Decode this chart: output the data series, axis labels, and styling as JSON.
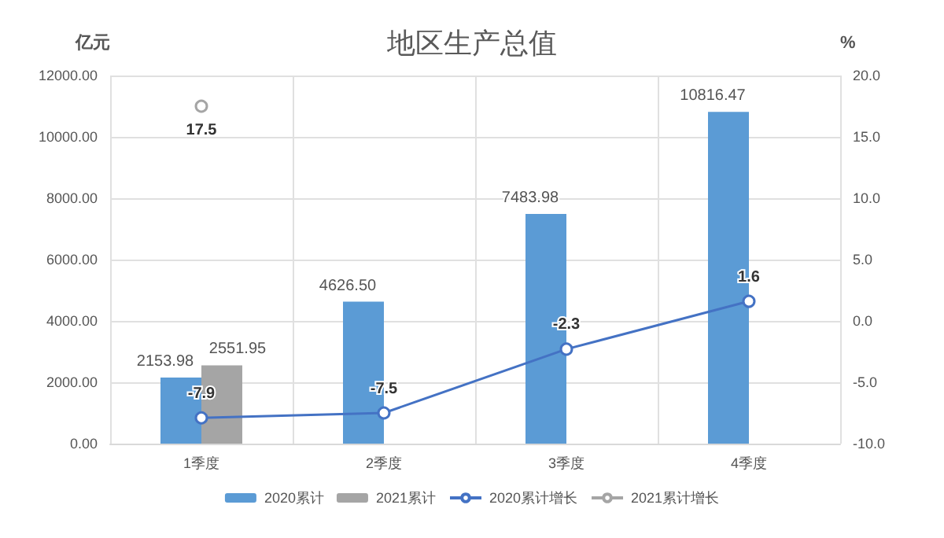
{
  "chart_data": {
    "type": "bar",
    "title": "地区生产总值",
    "ylabel": "亿元",
    "y2label": "%",
    "categories": [
      "1季度",
      "2季度",
      "3季度",
      "4季度"
    ],
    "series": [
      {
        "name": "2020累计",
        "color": "#5b9bd5",
        "values": [
          2153.98,
          4626.5,
          7483.98,
          10816.47
        ],
        "value_labels": [
          "2153.98",
          "4626.50",
          "7483.98",
          "10816.47"
        ]
      },
      {
        "name": "2021累计",
        "color": "#a5a5a5",
        "values": [
          2551.95,
          null,
          null,
          null
        ],
        "value_labels": [
          "2551.95",
          null,
          null,
          null
        ]
      },
      {
        "name": "2020累计增长",
        "type": "line",
        "axis": "y2",
        "color": "#4472c4",
        "values": [
          -7.9,
          -7.5,
          -2.3,
          1.6
        ],
        "value_labels": [
          "-7.9",
          "-7.5",
          "-2.3",
          "1.6"
        ]
      },
      {
        "name": "2021累计增长",
        "type": "line",
        "axis": "y2",
        "color": "#a5a5a5",
        "values": [
          17.5,
          null,
          null,
          null
        ],
        "value_labels": [
          "17.5",
          null,
          null,
          null
        ]
      }
    ],
    "ylim": [
      0,
      12000
    ],
    "yticks": [
      {
        "value": 0,
        "label": "0.00"
      },
      {
        "value": 2000,
        "label": "2000.00"
      },
      {
        "value": 4000,
        "label": "4000.00"
      },
      {
        "value": 6000,
        "label": "6000.00"
      },
      {
        "value": 8000,
        "label": "8000.00"
      },
      {
        "value": 10000,
        "label": "10000.00"
      },
      {
        "value": 12000,
        "label": "12000.00"
      }
    ],
    "y2lim": [
      -10,
      20
    ],
    "y2ticks": [
      {
        "value": -10,
        "label": "-10.0"
      },
      {
        "value": -5,
        "label": "-5.0"
      },
      {
        "value": 0,
        "label": "0.0"
      },
      {
        "value": 5,
        "label": "5.0"
      },
      {
        "value": 10,
        "label": "10.0"
      },
      {
        "value": 15,
        "label": "15.0"
      },
      {
        "value": 20,
        "label": "20.0"
      }
    ],
    "grid": true,
    "legend": "bottom",
    "marker": "circle"
  }
}
